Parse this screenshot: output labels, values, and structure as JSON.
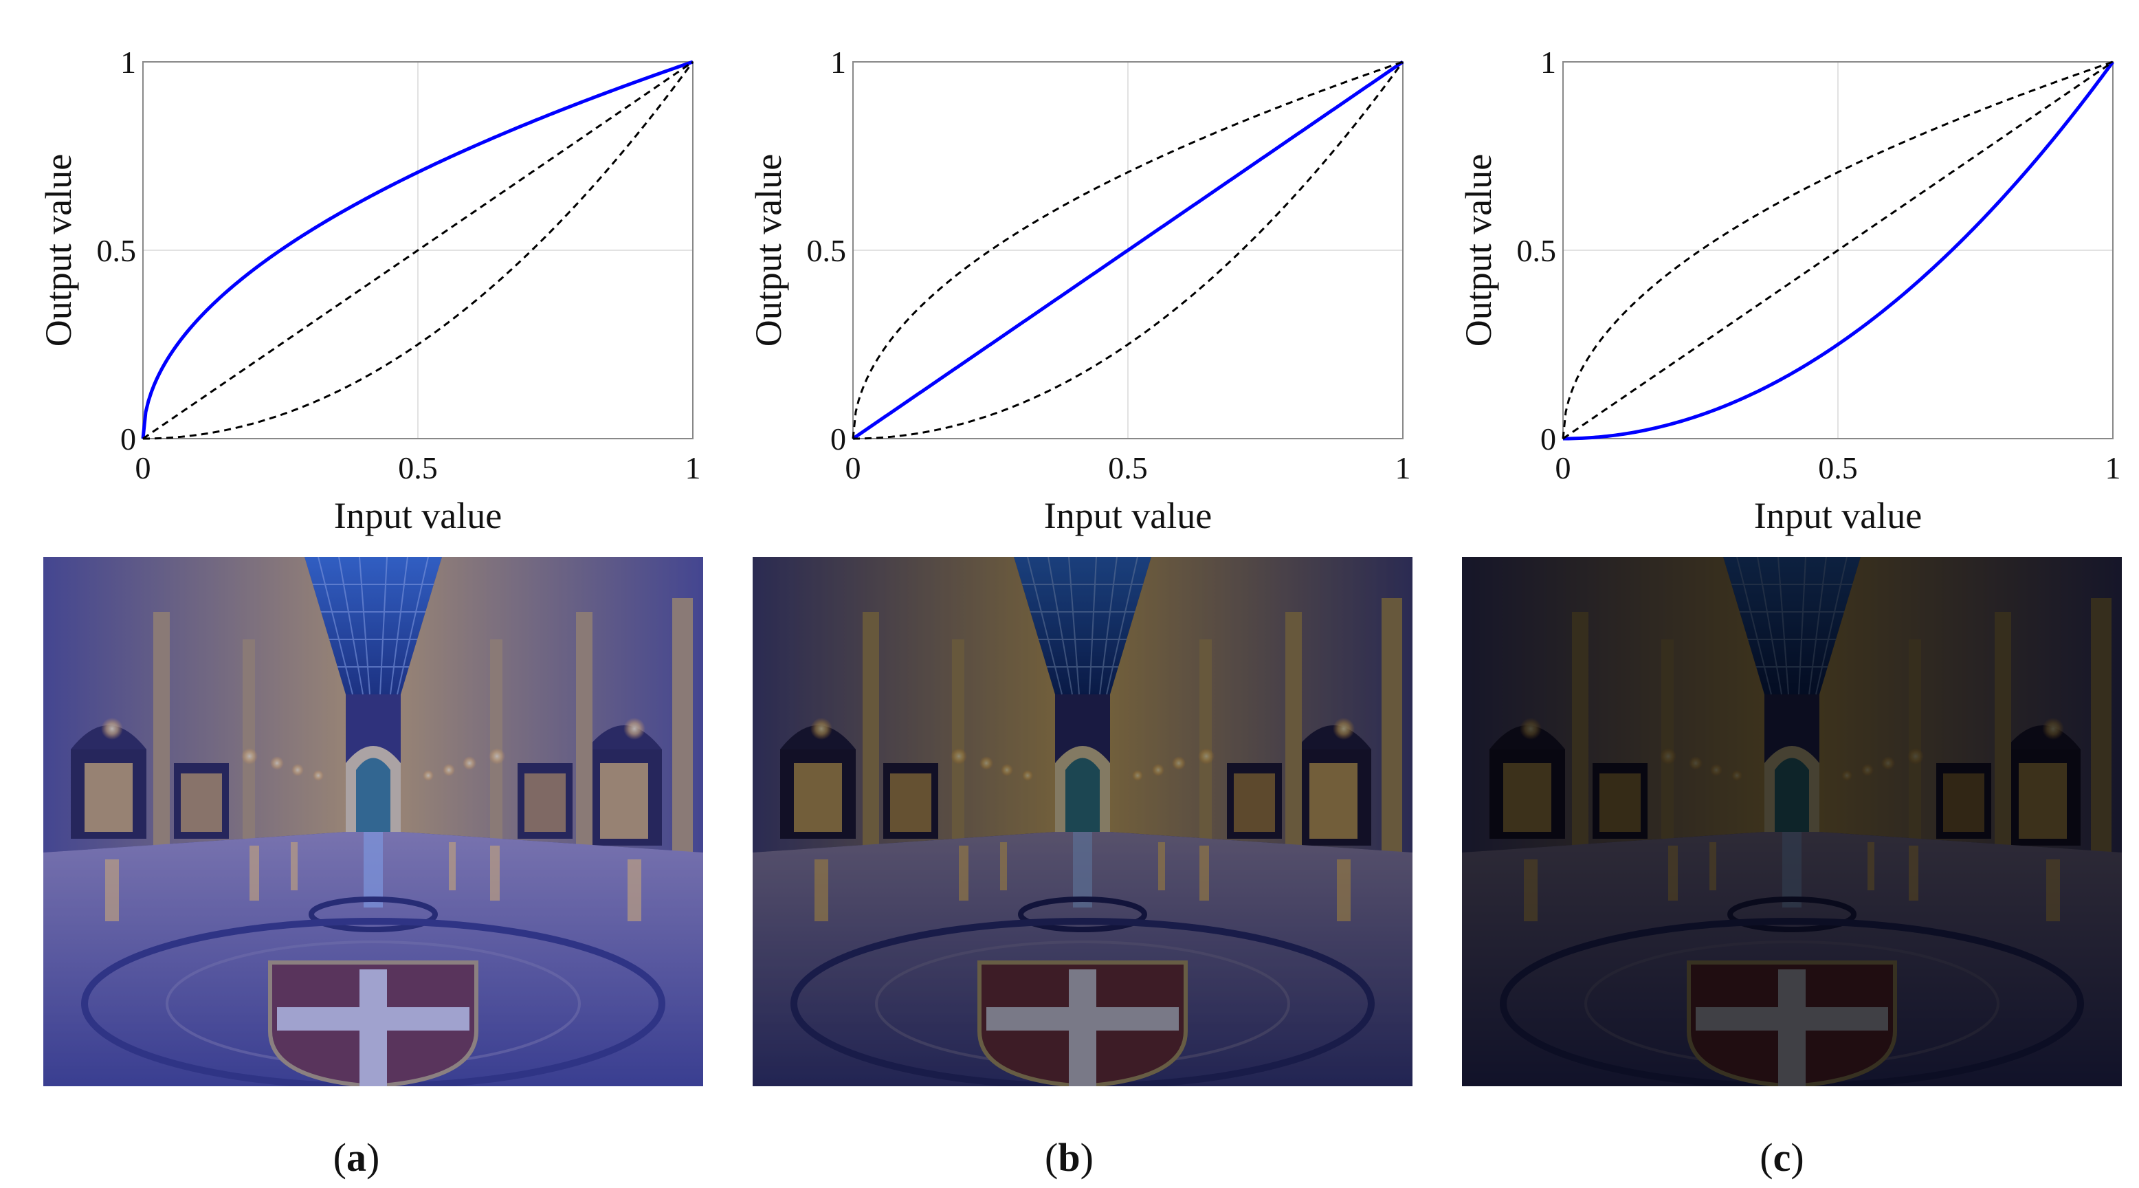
{
  "panels": [
    {
      "id": "a",
      "caption_letter": "a",
      "photo_brightness": 1.0,
      "photo_tint": "#3a3f9e",
      "photo_tint_opacity": 0.35
    },
    {
      "id": "b",
      "caption_letter": "b",
      "photo_brightness": 0.65,
      "photo_tint": "#1a1d40",
      "photo_tint_opacity": 0.15
    },
    {
      "id": "c",
      "caption_letter": "c",
      "photo_brightness": 0.3,
      "photo_tint": "#000000",
      "photo_tint_opacity": 0.0
    }
  ],
  "chart_data": [
    {
      "type": "line",
      "xlabel": "Input value",
      "ylabel": "Output value",
      "xlim": [
        0,
        1
      ],
      "ylim": [
        0,
        1
      ],
      "xticks": [
        "0",
        "0.5",
        "1"
      ],
      "yticks": [
        "0",
        "0.5",
        "1"
      ],
      "grid": true,
      "series": [
        {
          "style": "solid",
          "color": "#0000ff",
          "gamma": 0.5
        },
        {
          "style": "dashed",
          "color": "#000000",
          "gamma": 1.0
        },
        {
          "style": "dashed",
          "color": "#000000",
          "gamma": 2.0
        }
      ]
    },
    {
      "type": "line",
      "xlabel": "Input value",
      "ylabel": "Output value",
      "xlim": [
        0,
        1
      ],
      "ylim": [
        0,
        1
      ],
      "xticks": [
        "0",
        "0.5",
        "1"
      ],
      "yticks": [
        "0",
        "0.5",
        "1"
      ],
      "grid": true,
      "series": [
        {
          "style": "solid",
          "color": "#0000ff",
          "gamma": 1.0
        },
        {
          "style": "dashed",
          "color": "#000000",
          "gamma": 0.5
        },
        {
          "style": "dashed",
          "color": "#000000",
          "gamma": 2.0
        }
      ]
    },
    {
      "type": "line",
      "xlabel": "Input value",
      "ylabel": "Output value",
      "xlim": [
        0,
        1
      ],
      "ylim": [
        0,
        1
      ],
      "xticks": [
        "0",
        "0.5",
        "1"
      ],
      "yticks": [
        "0",
        "0.5",
        "1"
      ],
      "grid": true,
      "series": [
        {
          "style": "solid",
          "color": "#0000ff",
          "gamma": 2.0
        },
        {
          "style": "dashed",
          "color": "#000000",
          "gamma": 0.5
        },
        {
          "style": "dashed",
          "color": "#000000",
          "gamma": 1.0
        }
      ]
    }
  ]
}
